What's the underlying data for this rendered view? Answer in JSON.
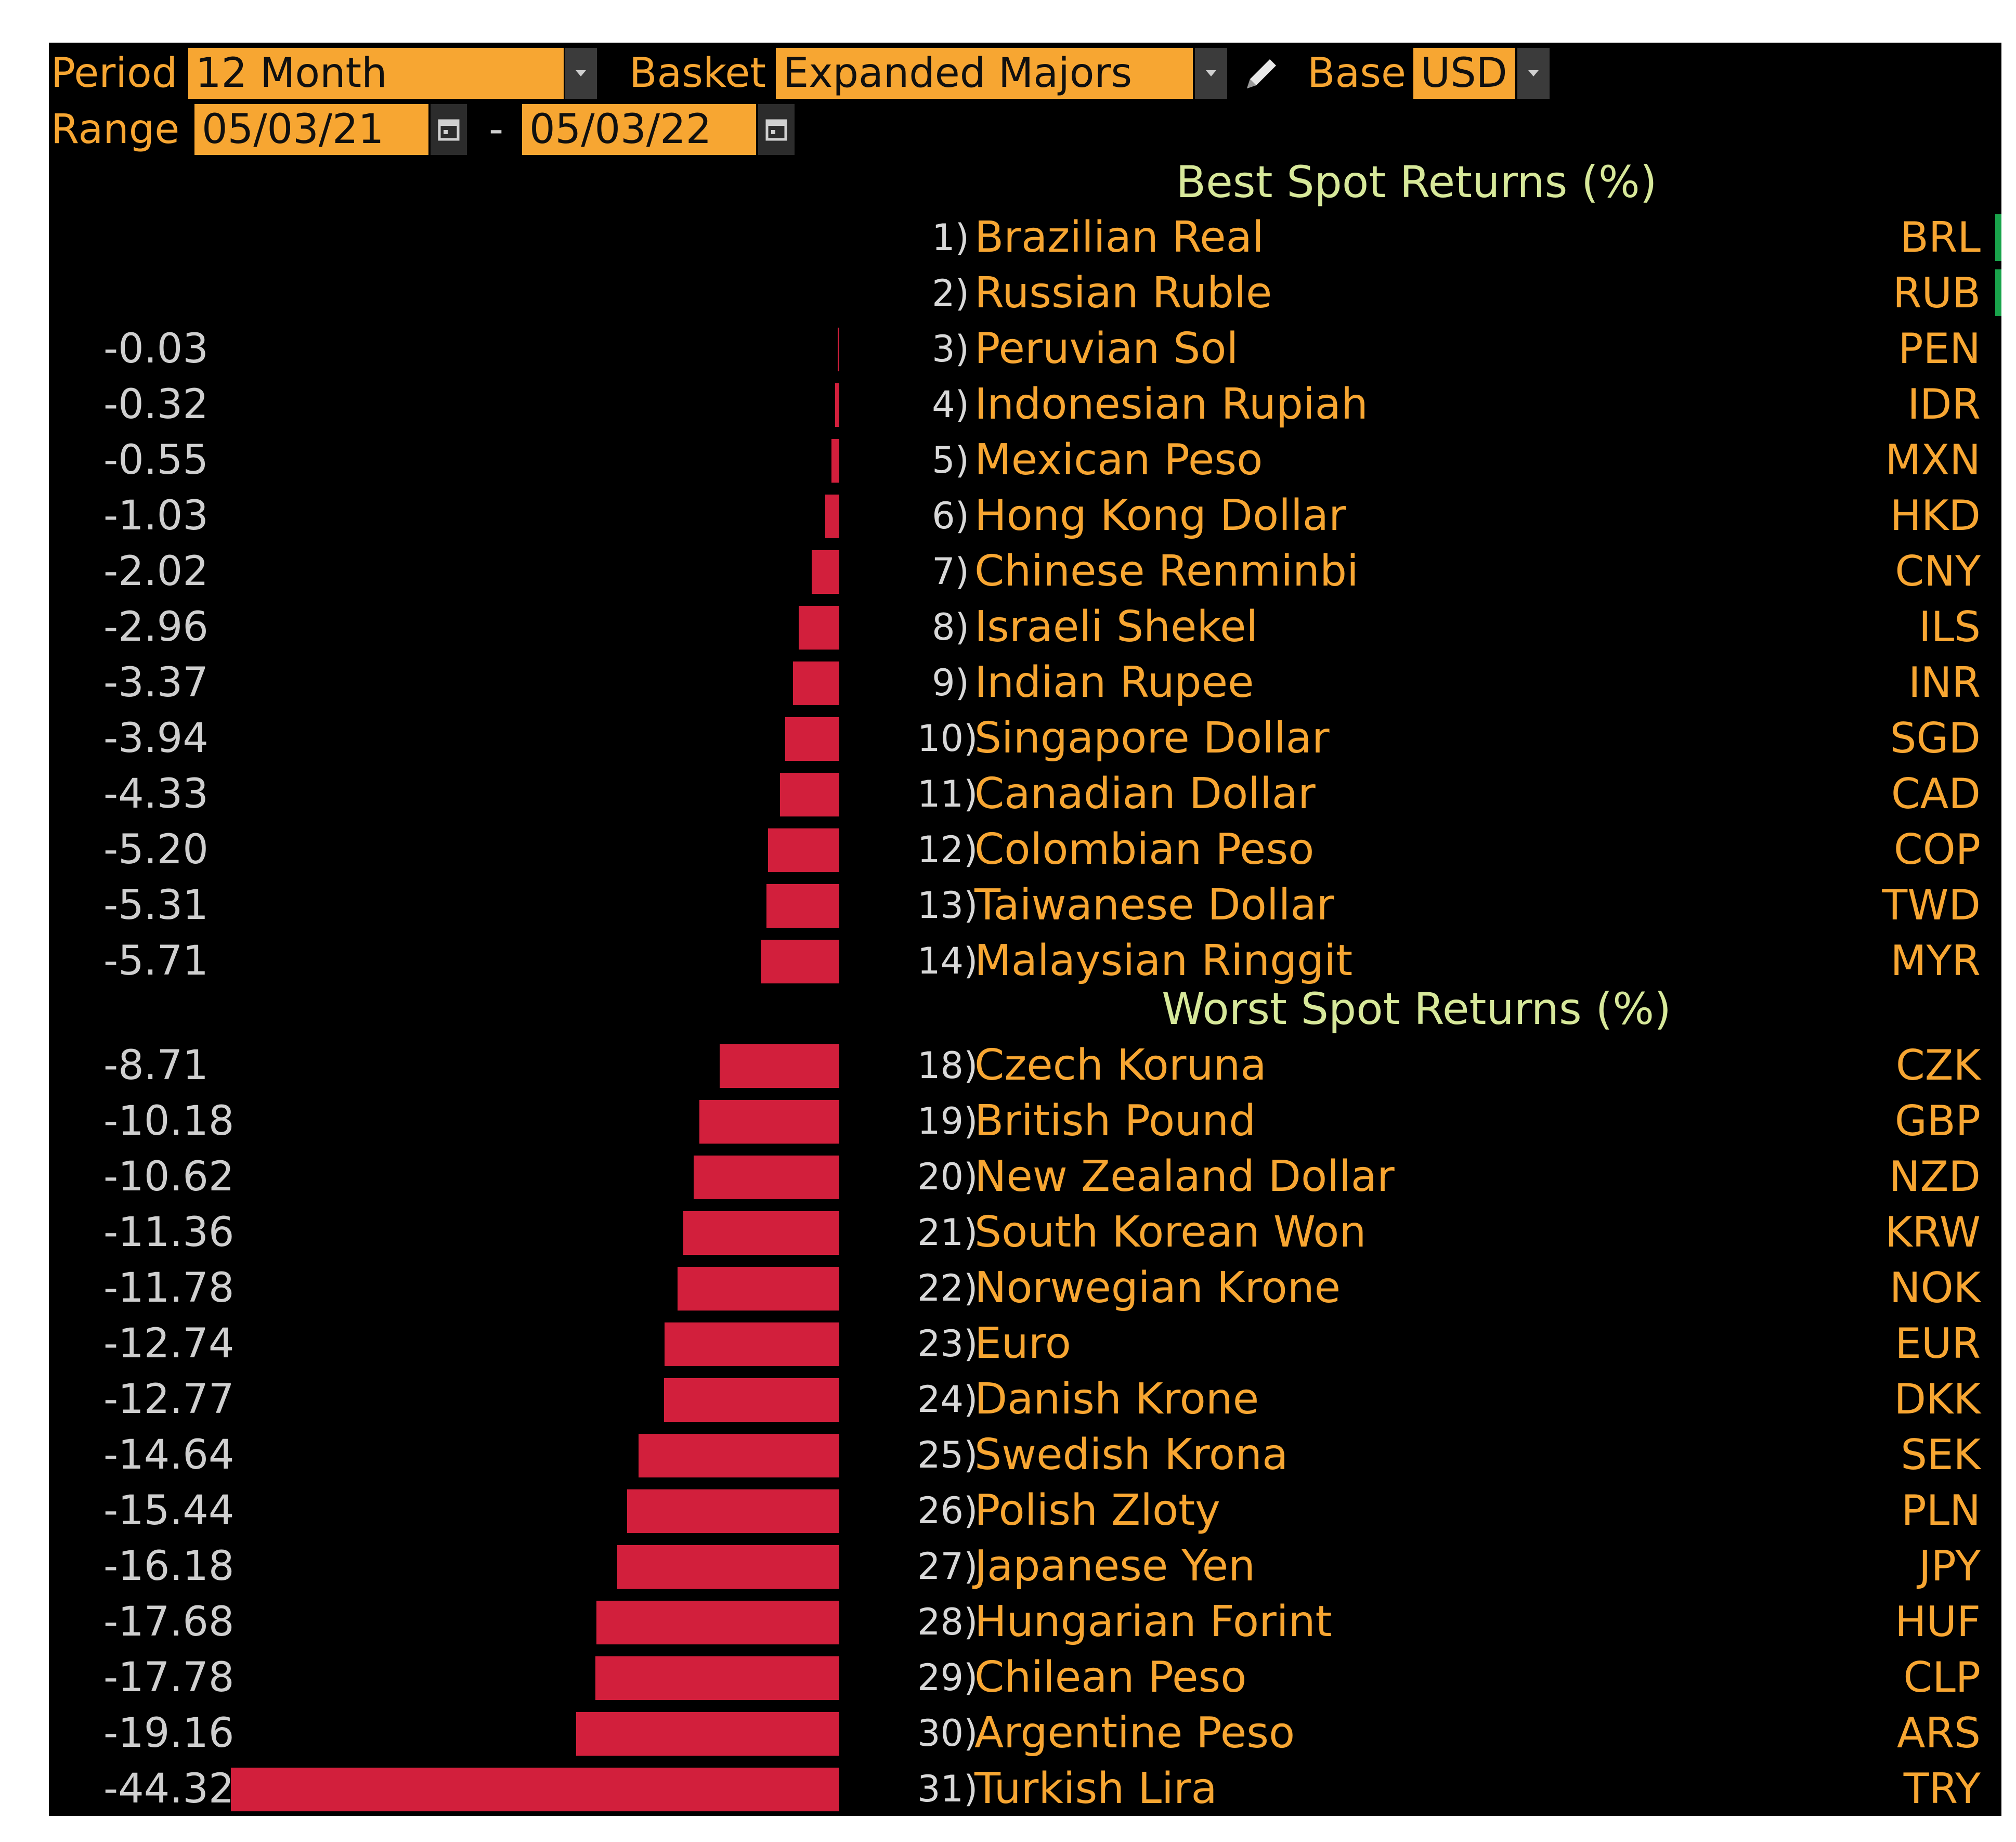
{
  "toolbar": {
    "period_label": "Period",
    "period_value": "12 Month",
    "basket_label": "Basket",
    "basket_value": "Expanded Majors",
    "base_label": "Base",
    "base_value": "USD",
    "range_label": "Range",
    "range_start": "05/03/21",
    "range_separator": "-",
    "range_end": "05/03/22",
    "icons": [
      "dropdown-arrow-icon",
      "pencil-icon",
      "calendar-icon"
    ]
  },
  "colors": {
    "accent_orange": "#f7a632",
    "bar_red": "#d21f3c",
    "title_green": "#d7e89a",
    "positive_green": "#19a34b",
    "background": "#000000"
  },
  "chart_data": {
    "type": "bar",
    "orientation": "horizontal",
    "best_title": "Best Spot Returns (%)",
    "worst_title": "Worst Spot Returns (%)",
    "best": [
      {
        "rank": "1)",
        "name": "Brazilian Real",
        "code": "BRL",
        "value": null
      },
      {
        "rank": "2)",
        "name": "Russian Ruble",
        "code": "RUB",
        "value": null
      },
      {
        "rank": "3)",
        "name": "Peruvian Sol",
        "code": "PEN",
        "value": -0.03,
        "label": "-0.03"
      },
      {
        "rank": "4)",
        "name": "Indonesian Rupiah",
        "code": "IDR",
        "value": -0.32,
        "label": "-0.32"
      },
      {
        "rank": "5)",
        "name": "Mexican Peso",
        "code": "MXN",
        "value": -0.55,
        "label": "-0.55"
      },
      {
        "rank": "6)",
        "name": "Hong Kong Dollar",
        "code": "HKD",
        "value": -1.03,
        "label": "-1.03"
      },
      {
        "rank": "7)",
        "name": "Chinese Renminbi",
        "code": "CNY",
        "value": -2.02,
        "label": "-2.02"
      },
      {
        "rank": "8)",
        "name": "Israeli Shekel",
        "code": "ILS",
        "value": -2.96,
        "label": "-2.96"
      },
      {
        "rank": "9)",
        "name": "Indian Rupee",
        "code": "INR",
        "value": -3.37,
        "label": "-3.37"
      },
      {
        "rank": "10)",
        "name": "Singapore Dollar",
        "code": "SGD",
        "value": -3.94,
        "label": "-3.94"
      },
      {
        "rank": "11)",
        "name": "Canadian Dollar",
        "code": "CAD",
        "value": -4.33,
        "label": "-4.33"
      },
      {
        "rank": "12)",
        "name": "Colombian Peso",
        "code": "COP",
        "value": -5.2,
        "label": "-5.20"
      },
      {
        "rank": "13)",
        "name": "Taiwanese Dollar",
        "code": "TWD",
        "value": -5.31,
        "label": "-5.31"
      },
      {
        "rank": "14)",
        "name": "Malaysian Ringgit",
        "code": "MYR",
        "value": -5.71,
        "label": "-5.71"
      }
    ],
    "worst": [
      {
        "rank": "18)",
        "name": "Czech Koruna",
        "code": "CZK",
        "value": -8.71,
        "label": "-8.71"
      },
      {
        "rank": "19)",
        "name": "British Pound",
        "code": "GBP",
        "value": -10.18,
        "label": "-10.18"
      },
      {
        "rank": "20)",
        "name": "New Zealand Dollar",
        "code": "NZD",
        "value": -10.62,
        "label": "-10.62"
      },
      {
        "rank": "21)",
        "name": "South Korean Won",
        "code": "KRW",
        "value": -11.36,
        "label": "-11.36"
      },
      {
        "rank": "22)",
        "name": "Norwegian Krone",
        "code": "NOK",
        "value": -11.78,
        "label": "-11.78"
      },
      {
        "rank": "23)",
        "name": "Euro",
        "code": "EUR",
        "value": -12.74,
        "label": "-12.74"
      },
      {
        "rank": "24)",
        "name": "Danish Krone",
        "code": "DKK",
        "value": -12.77,
        "label": "-12.77"
      },
      {
        "rank": "25)",
        "name": "Swedish Krona",
        "code": "SEK",
        "value": -14.64,
        "label": "-14.64"
      },
      {
        "rank": "26)",
        "name": "Polish Zloty",
        "code": "PLN",
        "value": -15.44,
        "label": "-15.44"
      },
      {
        "rank": "27)",
        "name": "Japanese Yen",
        "code": "JPY",
        "value": -16.18,
        "label": "-16.18"
      },
      {
        "rank": "28)",
        "name": "Hungarian Forint",
        "code": "HUF",
        "value": -17.68,
        "label": "-17.68"
      },
      {
        "rank": "29)",
        "name": "Chilean Peso",
        "code": "CLP",
        "value": -17.78,
        "label": "-17.78"
      },
      {
        "rank": "30)",
        "name": "Argentine Peso",
        "code": "ARS",
        "value": -19.16,
        "label": "-19.16"
      },
      {
        "rank": "31)",
        "name": "Turkish Lira",
        "code": "TRY",
        "value": -44.32,
        "label": "-44.32"
      }
    ],
    "xlim": [
      -44.32,
      0
    ],
    "grid": false,
    "legend": "none"
  }
}
